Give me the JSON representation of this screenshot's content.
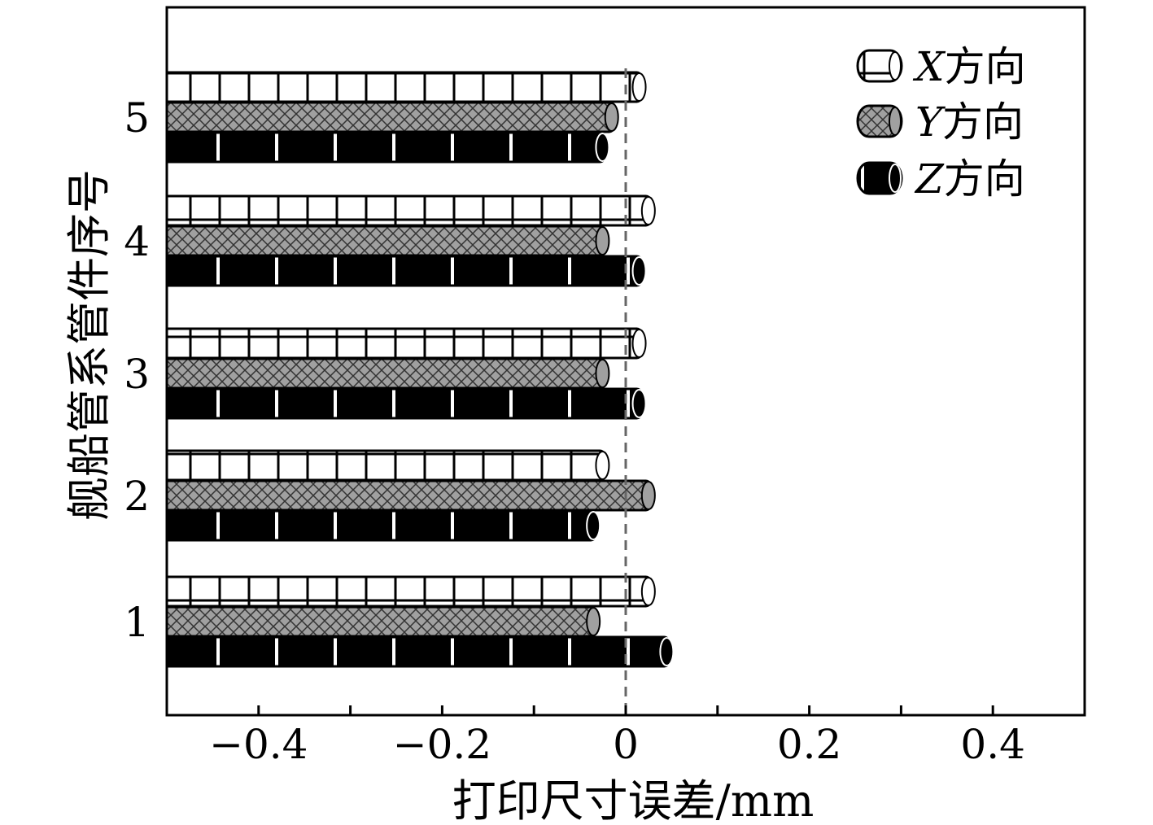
{
  "chart_data": {
    "type": "bar",
    "orientation": "horizontal",
    "categories": [
      "1",
      "2",
      "3",
      "4",
      "5"
    ],
    "series": [
      {
        "name": "X方向",
        "name_italic": "X",
        "name_rest": "方向",
        "values": [
          0.03,
          -0.02,
          0.02,
          0.03,
          0.02
        ],
        "pattern": "bricks",
        "color": "#ffffff"
      },
      {
        "name": "Y方向",
        "name_italic": "Y",
        "name_rest": "方向",
        "values": [
          -0.03,
          0.03,
          -0.02,
          -0.02,
          -0.01
        ],
        "pattern": "checker",
        "color": "#a0a0a0"
      },
      {
        "name": "Z方向",
        "name_italic": "Z",
        "name_rest": "方向",
        "values": [
          0.05,
          -0.03,
          0.02,
          0.02,
          -0.02
        ],
        "pattern": "ticks",
        "color": "#000000"
      }
    ],
    "xlabel": "打印尺寸误差/mm",
    "ylabel": "舰船管系管件序号",
    "xlim": [
      -0.5,
      0.5
    ],
    "xticks": [
      -0.4,
      -0.2,
      0,
      0.2,
      0.4
    ],
    "xtick_labels": [
      "−0.4",
      "−0.2",
      "0",
      "0.2",
      "0.4"
    ],
    "reference_line": 0,
    "legend_position": "top-right",
    "grid": false
  }
}
